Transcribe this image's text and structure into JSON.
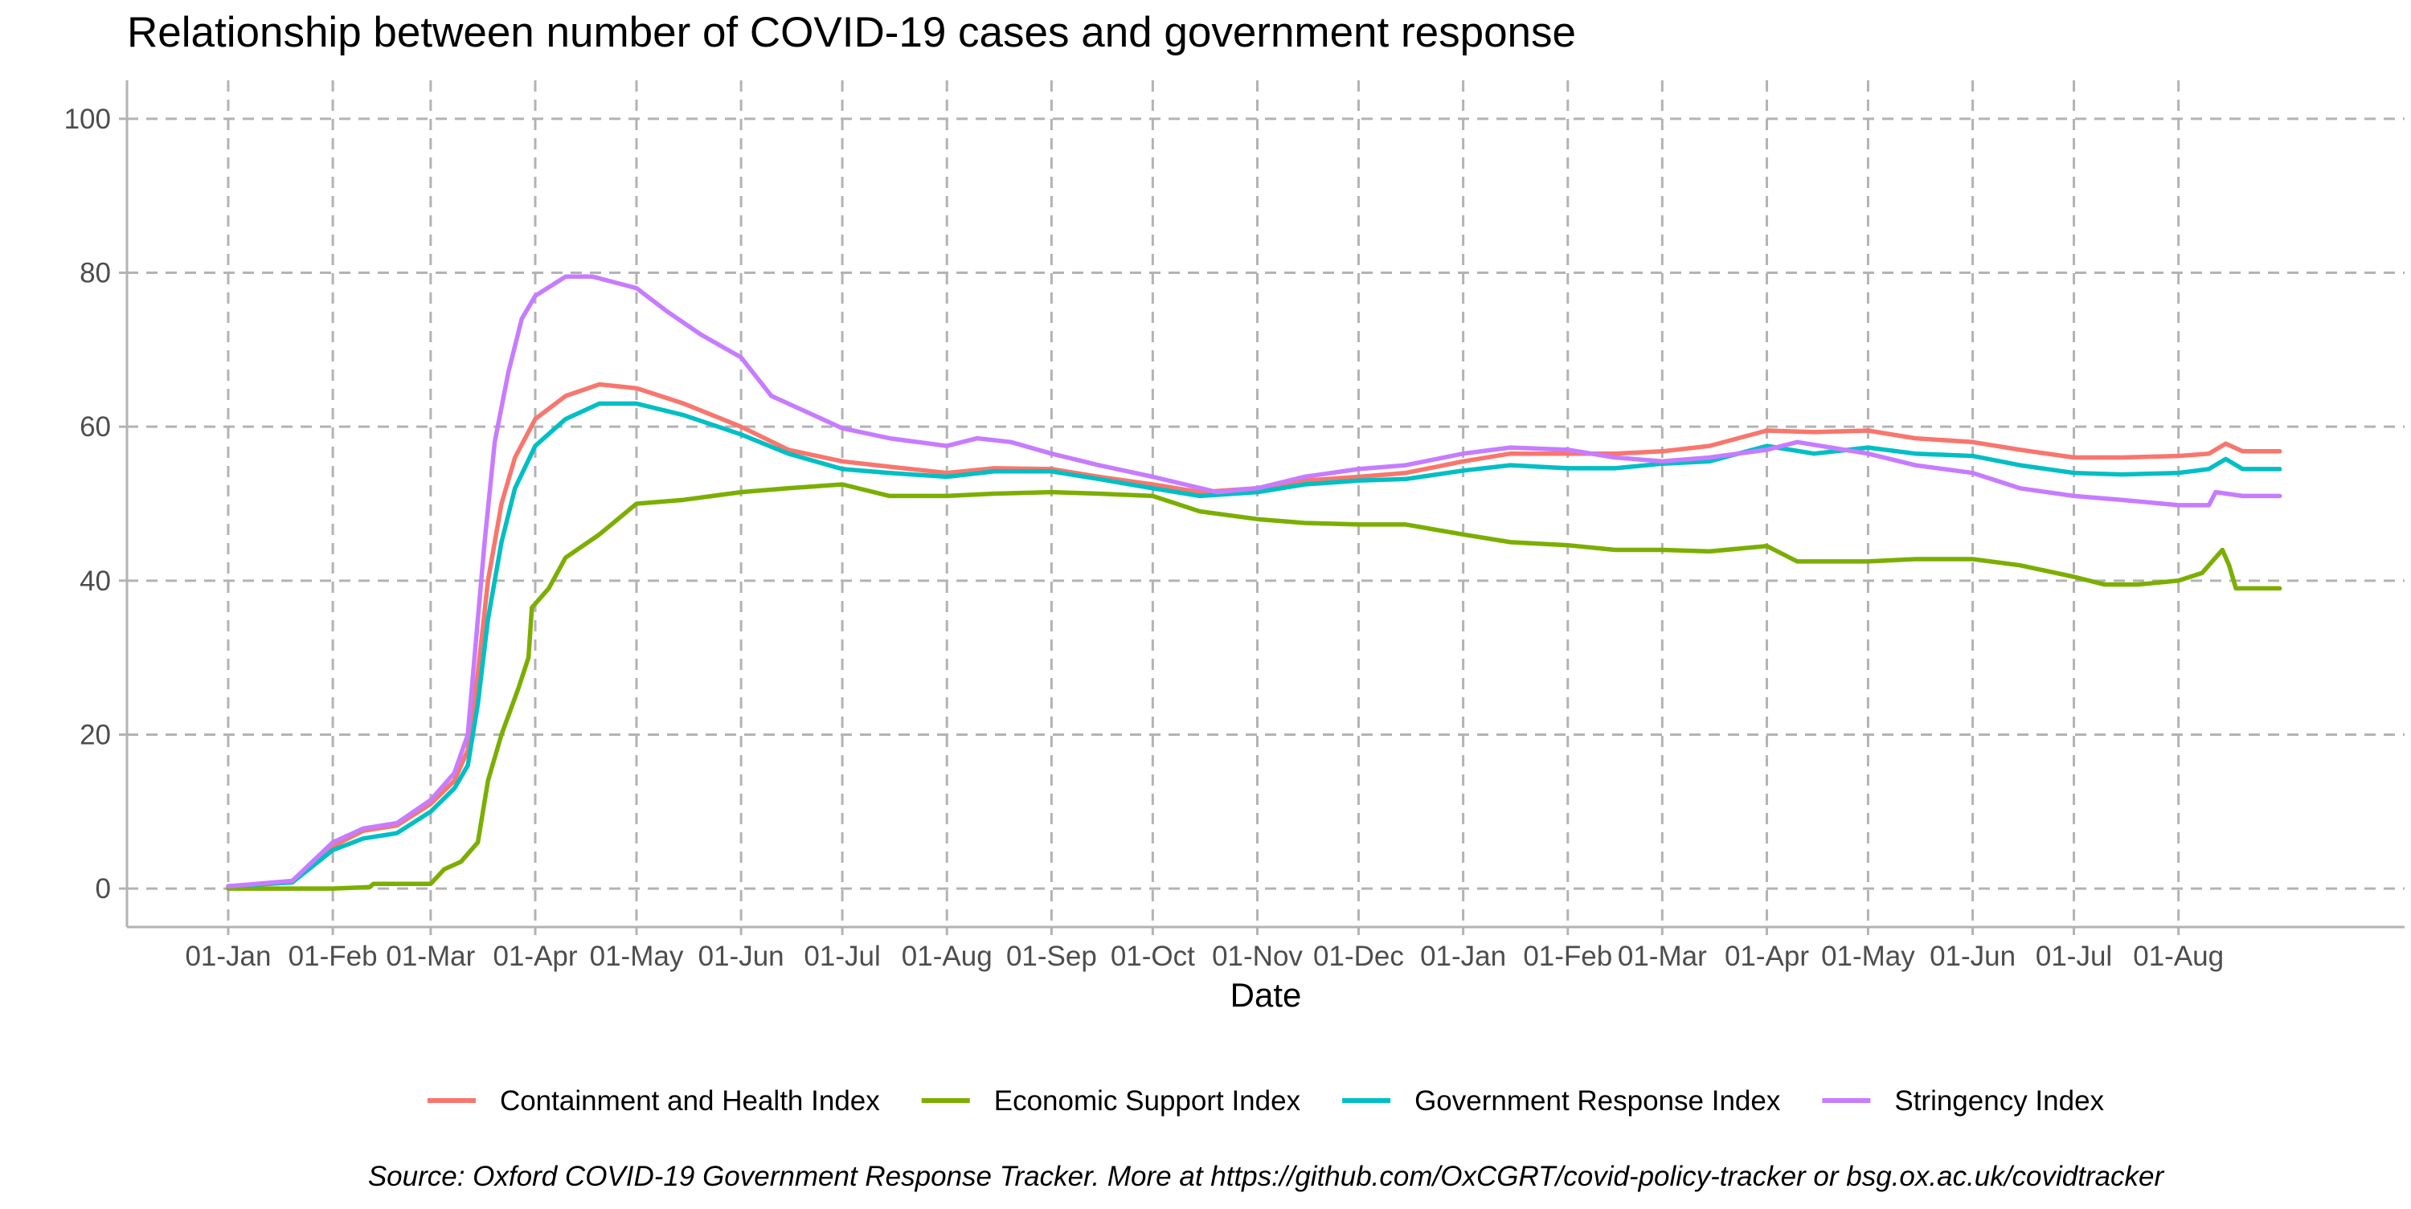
{
  "chart_data": {
    "type": "line",
    "title": "Relationship between number of COVID-19 cases and government response",
    "xlabel": "Date",
    "ylabel": "",
    "caption": "Source: Oxford COVID-19 Government Response Tracker. More at https://github.com/OxCGRT/covid-policy-tracker or bsg.ox.ac.uk/covidtracker",
    "x_ticks": [
      "01-Jan",
      "01-Feb",
      "01-Mar",
      "01-Apr",
      "01-May",
      "01-Jun",
      "01-Jul",
      "01-Aug",
      "01-Sep",
      "01-Oct",
      "01-Nov",
      "01-Dec",
      "01-Jan",
      "01-Feb",
      "01-Mar",
      "01-Apr",
      "01-May",
      "01-Jun",
      "01-Jul",
      "01-Aug"
    ],
    "x_tick_dates": [
      "2020-01-01",
      "2020-02-01",
      "2020-03-01",
      "2020-04-01",
      "2020-05-01",
      "2020-06-01",
      "2020-07-01",
      "2020-08-01",
      "2020-09-01",
      "2020-10-01",
      "2020-11-01",
      "2020-12-01",
      "2021-01-01",
      "2021-02-01",
      "2021-03-01",
      "2021-04-01",
      "2021-05-01",
      "2021-06-01",
      "2021-07-01",
      "2021-08-01"
    ],
    "xlim": [
      "2019-12-02",
      "2021-10-07"
    ],
    "y_ticks": [
      0,
      20,
      40,
      60,
      80,
      100
    ],
    "ylim": [
      -5,
      105
    ],
    "grid": true,
    "legend_position": "bottom",
    "series": [
      {
        "name": "Containment and Health Index",
        "color": "#F8766D",
        "points": [
          [
            "2020-01-01",
            0.3
          ],
          [
            "2020-01-20",
            0.8
          ],
          [
            "2020-02-01",
            5.5
          ],
          [
            "2020-02-10",
            7.5
          ],
          [
            "2020-02-20",
            8.2
          ],
          [
            "2020-03-01",
            11
          ],
          [
            "2020-03-08",
            14
          ],
          [
            "2020-03-12",
            18
          ],
          [
            "2020-03-15",
            28
          ],
          [
            "2020-03-18",
            40
          ],
          [
            "2020-03-22",
            50
          ],
          [
            "2020-03-26",
            56
          ],
          [
            "2020-04-01",
            61
          ],
          [
            "2020-04-10",
            64
          ],
          [
            "2020-04-20",
            65.5
          ],
          [
            "2020-05-01",
            65
          ],
          [
            "2020-05-15",
            63
          ],
          [
            "2020-06-01",
            60
          ],
          [
            "2020-06-15",
            57
          ],
          [
            "2020-07-01",
            55.5
          ],
          [
            "2020-07-15",
            54.8
          ],
          [
            "2020-08-01",
            54
          ],
          [
            "2020-08-15",
            54.6
          ],
          [
            "2020-09-01",
            54.5
          ],
          [
            "2020-09-15",
            53.5
          ],
          [
            "2020-10-01",
            52.5
          ],
          [
            "2020-10-15",
            51.5
          ],
          [
            "2020-11-01",
            52
          ],
          [
            "2020-11-15",
            53
          ],
          [
            "2020-12-01",
            53.5
          ],
          [
            "2020-12-15",
            54
          ],
          [
            "2021-01-01",
            55.5
          ],
          [
            "2021-01-15",
            56.5
          ],
          [
            "2021-02-01",
            56.5
          ],
          [
            "2021-02-15",
            56.5
          ],
          [
            "2021-03-01",
            56.8
          ],
          [
            "2021-03-15",
            57.5
          ],
          [
            "2021-04-01",
            59.5
          ],
          [
            "2021-04-15",
            59.3
          ],
          [
            "2021-05-01",
            59.5
          ],
          [
            "2021-05-15",
            58.5
          ],
          [
            "2021-06-01",
            58
          ],
          [
            "2021-06-15",
            57
          ],
          [
            "2021-07-01",
            56
          ],
          [
            "2021-07-15",
            56
          ],
          [
            "2021-08-01",
            56.2
          ],
          [
            "2021-08-10",
            56.5
          ],
          [
            "2021-08-15",
            57.8
          ],
          [
            "2021-08-20",
            56.8
          ],
          [
            "2021-08-31",
            56.8
          ]
        ]
      },
      {
        "name": "Economic Support Index",
        "color": "#7CAE00",
        "points": [
          [
            "2020-01-01",
            0
          ],
          [
            "2020-02-01",
            0
          ],
          [
            "2020-02-12",
            0.2
          ],
          [
            "2020-02-13",
            0.6
          ],
          [
            "2020-03-01",
            0.6
          ],
          [
            "2020-03-05",
            2.5
          ],
          [
            "2020-03-10",
            3.5
          ],
          [
            "2020-03-15",
            6
          ],
          [
            "2020-03-18",
            14
          ],
          [
            "2020-03-22",
            20
          ],
          [
            "2020-03-27",
            26
          ],
          [
            "2020-03-30",
            30
          ],
          [
            "2020-03-31",
            36.5
          ],
          [
            "2020-04-05",
            39
          ],
          [
            "2020-04-10",
            43
          ],
          [
            "2020-04-20",
            46
          ],
          [
            "2020-05-01",
            50
          ],
          [
            "2020-05-15",
            50.5
          ],
          [
            "2020-06-01",
            51.5
          ],
          [
            "2020-06-15",
            52
          ],
          [
            "2020-07-01",
            52.5
          ],
          [
            "2020-07-15",
            51
          ],
          [
            "2020-08-01",
            51
          ],
          [
            "2020-08-15",
            51.3
          ],
          [
            "2020-09-01",
            51.5
          ],
          [
            "2020-09-15",
            51.3
          ],
          [
            "2020-10-01",
            51
          ],
          [
            "2020-10-15",
            49
          ],
          [
            "2020-11-01",
            48
          ],
          [
            "2020-11-15",
            47.5
          ],
          [
            "2020-12-01",
            47.3
          ],
          [
            "2020-12-15",
            47.3
          ],
          [
            "2021-01-01",
            46
          ],
          [
            "2021-01-15",
            45
          ],
          [
            "2021-02-01",
            44.6
          ],
          [
            "2021-02-15",
            44
          ],
          [
            "2021-03-01",
            44
          ],
          [
            "2021-03-15",
            43.8
          ],
          [
            "2021-04-01",
            44.5
          ],
          [
            "2021-04-10",
            42.5
          ],
          [
            "2021-05-01",
            42.5
          ],
          [
            "2021-05-15",
            42.8
          ],
          [
            "2021-06-01",
            42.8
          ],
          [
            "2021-06-15",
            42
          ],
          [
            "2021-07-01",
            40.5
          ],
          [
            "2021-07-10",
            39.5
          ],
          [
            "2021-07-20",
            39.5
          ],
          [
            "2021-08-01",
            40
          ],
          [
            "2021-08-08",
            41
          ],
          [
            "2021-08-14",
            44
          ],
          [
            "2021-08-16",
            42
          ],
          [
            "2021-08-18",
            39
          ],
          [
            "2021-08-31",
            39
          ]
        ]
      },
      {
        "name": "Government Response Index",
        "color": "#00BFC4",
        "points": [
          [
            "2020-01-01",
            0.3
          ],
          [
            "2020-01-20",
            0.8
          ],
          [
            "2020-02-01",
            5
          ],
          [
            "2020-02-10",
            6.5
          ],
          [
            "2020-02-20",
            7.2
          ],
          [
            "2020-03-01",
            10
          ],
          [
            "2020-03-08",
            13
          ],
          [
            "2020-03-12",
            16
          ],
          [
            "2020-03-15",
            24
          ],
          [
            "2020-03-18",
            35
          ],
          [
            "2020-03-22",
            45
          ],
          [
            "2020-03-26",
            52
          ],
          [
            "2020-04-01",
            57.5
          ],
          [
            "2020-04-10",
            61
          ],
          [
            "2020-04-20",
            63
          ],
          [
            "2020-05-01",
            63
          ],
          [
            "2020-05-15",
            61.5
          ],
          [
            "2020-06-01",
            59
          ],
          [
            "2020-06-15",
            56.5
          ],
          [
            "2020-07-01",
            54.5
          ],
          [
            "2020-07-15",
            54
          ],
          [
            "2020-08-01",
            53.5
          ],
          [
            "2020-08-15",
            54.2
          ],
          [
            "2020-09-01",
            54.2
          ],
          [
            "2020-09-15",
            53.2
          ],
          [
            "2020-10-01",
            52
          ],
          [
            "2020-10-15",
            51
          ],
          [
            "2020-11-01",
            51.5
          ],
          [
            "2020-11-15",
            52.5
          ],
          [
            "2020-12-01",
            53
          ],
          [
            "2020-12-15",
            53.2
          ],
          [
            "2021-01-01",
            54.3
          ],
          [
            "2021-01-15",
            55
          ],
          [
            "2021-02-01",
            54.6
          ],
          [
            "2021-02-15",
            54.6
          ],
          [
            "2021-03-01",
            55.2
          ],
          [
            "2021-03-15",
            55.5
          ],
          [
            "2021-04-01",
            57.5
          ],
          [
            "2021-04-15",
            56.5
          ],
          [
            "2021-05-01",
            57.3
          ],
          [
            "2021-05-15",
            56.5
          ],
          [
            "2021-06-01",
            56.2
          ],
          [
            "2021-06-15",
            55
          ],
          [
            "2021-07-01",
            54
          ],
          [
            "2021-07-15",
            53.8
          ],
          [
            "2021-08-01",
            54
          ],
          [
            "2021-08-10",
            54.5
          ],
          [
            "2021-08-15",
            55.8
          ],
          [
            "2021-08-20",
            54.5
          ],
          [
            "2021-08-31",
            54.5
          ]
        ]
      },
      {
        "name": "Stringency Index",
        "color": "#C77CFF",
        "points": [
          [
            "2020-01-01",
            0.3
          ],
          [
            "2020-01-20",
            1
          ],
          [
            "2020-02-01",
            6
          ],
          [
            "2020-02-10",
            7.8
          ],
          [
            "2020-02-20",
            8.5
          ],
          [
            "2020-03-01",
            11.5
          ],
          [
            "2020-03-08",
            15
          ],
          [
            "2020-03-12",
            20
          ],
          [
            "2020-03-14",
            30
          ],
          [
            "2020-03-17",
            45
          ],
          [
            "2020-03-20",
            58
          ],
          [
            "2020-03-24",
            67
          ],
          [
            "2020-03-28",
            74
          ],
          [
            "2020-04-01",
            77
          ],
          [
            "2020-04-10",
            79.5
          ],
          [
            "2020-04-18",
            79.5
          ],
          [
            "2020-05-01",
            78
          ],
          [
            "2020-05-10",
            75
          ],
          [
            "2020-05-20",
            72
          ],
          [
            "2020-06-01",
            69
          ],
          [
            "2020-06-10",
            64
          ],
          [
            "2020-06-20",
            62
          ],
          [
            "2020-07-01",
            59.8
          ],
          [
            "2020-07-15",
            58.5
          ],
          [
            "2020-08-01",
            57.5
          ],
          [
            "2020-08-10",
            58.5
          ],
          [
            "2020-08-20",
            58
          ],
          [
            "2020-09-01",
            56.5
          ],
          [
            "2020-09-15",
            55
          ],
          [
            "2020-10-01",
            53.5
          ],
          [
            "2020-10-20",
            51.5
          ],
          [
            "2020-11-01",
            52
          ],
          [
            "2020-11-15",
            53.5
          ],
          [
            "2020-12-01",
            54.5
          ],
          [
            "2020-12-15",
            55
          ],
          [
            "2021-01-01",
            56.5
          ],
          [
            "2021-01-15",
            57.3
          ],
          [
            "2021-02-01",
            57
          ],
          [
            "2021-02-15",
            56
          ],
          [
            "2021-03-01",
            55.5
          ],
          [
            "2021-03-15",
            56
          ],
          [
            "2021-04-01",
            57
          ],
          [
            "2021-04-10",
            58
          ],
          [
            "2021-05-01",
            56.5
          ],
          [
            "2021-05-15",
            55
          ],
          [
            "2021-06-01",
            54
          ],
          [
            "2021-06-15",
            52
          ],
          [
            "2021-07-01",
            51
          ],
          [
            "2021-07-15",
            50.5
          ],
          [
            "2021-08-01",
            49.8
          ],
          [
            "2021-08-10",
            49.8
          ],
          [
            "2021-08-12",
            51.5
          ],
          [
            "2021-08-20",
            51
          ],
          [
            "2021-08-31",
            51
          ]
        ]
      }
    ]
  }
}
